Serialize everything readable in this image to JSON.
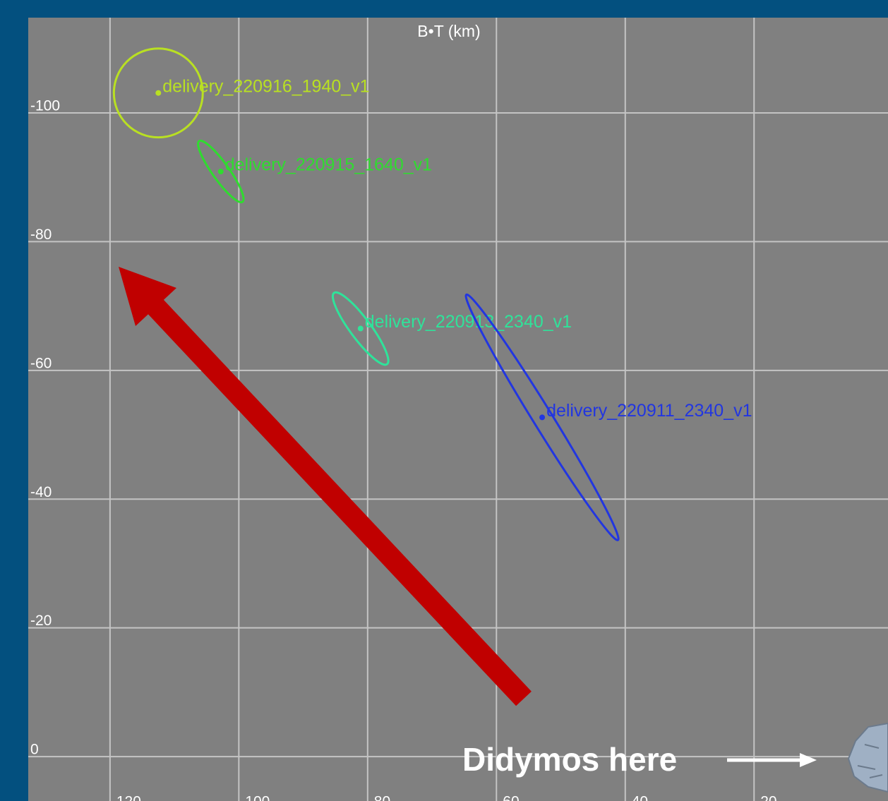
{
  "chart_data": {
    "type": "scatter",
    "title": "B•T (km)",
    "xlim": [
      -132.7,
      0.8
    ],
    "ylim": [
      -114.8,
      6.9
    ],
    "y_inverted": true,
    "xticks": [
      -120,
      -100,
      -80,
      -60,
      -40,
      -20
    ],
    "yticks": [
      -100,
      -80,
      -60,
      -40,
      -20,
      0
    ],
    "grid": true,
    "series": [
      {
        "name": "delivery_220916_1940_v1",
        "color": "#b9e022",
        "x": [
          -112.5
        ],
        "y": [
          -103.1
        ],
        "ellipse": {
          "a": 6.9,
          "b": 6.9,
          "angle": 0
        }
      },
      {
        "name": "delivery_220915_1640_v1",
        "color": "#2fdc2f",
        "x": [
          -102.8
        ],
        "y": [
          -90.9
        ],
        "ellipse": {
          "a": 5.8,
          "b": 1.3,
          "angle": 54.5
        }
      },
      {
        "name": "delivery_220913_2340_v1",
        "color": "#2fe39a",
        "x": [
          -81.1
        ],
        "y": [
          -66.5
        ],
        "ellipse": {
          "a": 6.9,
          "b": 1.6,
          "angle": 53.4
        }
      },
      {
        "name": "delivery_220911_2340_v1",
        "color": "#2236e0",
        "x": [
          -52.9
        ],
        "y": [
          -52.7
        ],
        "ellipse": {
          "a": 22.4,
          "b": 1.5,
          "angle": 58.3
        }
      }
    ],
    "annotations": [
      "Didymos here"
    ]
  }
}
